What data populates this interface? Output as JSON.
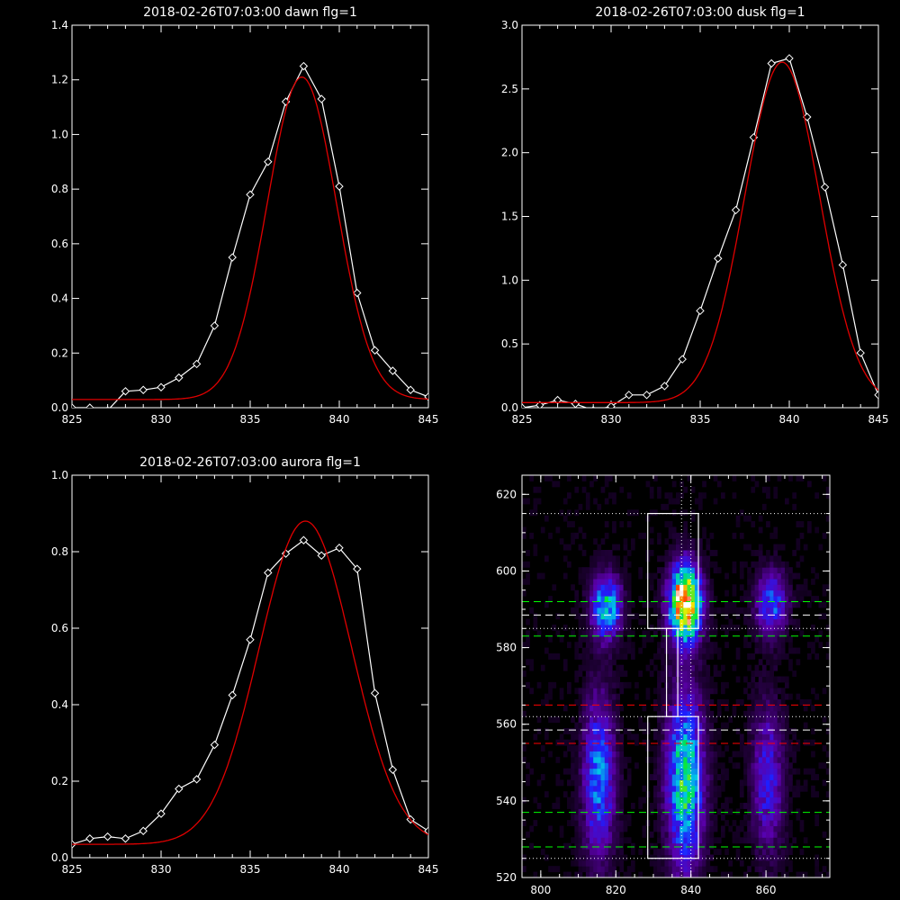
{
  "chart_data": [
    {
      "type": "line",
      "title": "2018-02-26T07:03:00 dawn flg=1",
      "xlim": [
        825,
        845
      ],
      "ylim": [
        0,
        1.4
      ],
      "x_ticks": [
        "825",
        "830",
        "835",
        "840",
        "845"
      ],
      "y_ticks": [
        "0.0",
        "0.2",
        "0.4",
        "0.6",
        "0.8",
        "1.0",
        "1.2",
        "1.4"
      ],
      "colors": {
        "observed": "#ffffff",
        "fit": "#e00000"
      },
      "series": [
        {
          "role": "observed",
          "markers": "diamond",
          "x": [
            825,
            826,
            827,
            828,
            829,
            830,
            831,
            832,
            833,
            834,
            835,
            836,
            837,
            838,
            839,
            840,
            841,
            842,
            843,
            844,
            845
          ],
          "y": [
            0.0,
            0.0,
            -0.01,
            0.06,
            0.065,
            0.075,
            0.11,
            0.16,
            0.3,
            0.55,
            0.78,
            0.9,
            1.12,
            1.25,
            1.13,
            0.81,
            0.42,
            0.21,
            0.135,
            0.065,
            0.04
          ]
        },
        {
          "role": "fit",
          "shape": "gaussian",
          "baseline": 0.03,
          "amplitude": 1.18,
          "center": 837.9,
          "sigma": 1.95
        }
      ]
    },
    {
      "type": "line",
      "title": "2018-02-26T07:03:00 dusk flg=1",
      "xlim": [
        825,
        845
      ],
      "ylim": [
        0,
        3.0
      ],
      "x_ticks": [
        "825",
        "830",
        "835",
        "840",
        "845"
      ],
      "y_ticks": [
        "0.0",
        "0.5",
        "1.0",
        "1.5",
        "2.0",
        "2.5",
        "3.0"
      ],
      "colors": {
        "observed": "#ffffff",
        "fit": "#e00000"
      },
      "series": [
        {
          "role": "observed",
          "markers": "diamond",
          "x": [
            825,
            826,
            827,
            828,
            829,
            830,
            831,
            832,
            833,
            834,
            835,
            836,
            837,
            838,
            839,
            840,
            841,
            842,
            843,
            844,
            845
          ],
          "y": [
            0.0,
            0.02,
            0.06,
            0.03,
            -0.02,
            0.01,
            0.1,
            0.1,
            0.17,
            0.38,
            0.76,
            1.17,
            1.55,
            2.12,
            2.7,
            2.74,
            2.28,
            1.73,
            1.12,
            0.43,
            0.1
          ]
        },
        {
          "role": "fit",
          "shape": "gaussian",
          "baseline": 0.04,
          "amplitude": 2.67,
          "center": 839.6,
          "sigma": 2.1
        }
      ]
    },
    {
      "type": "line",
      "title": "2018-02-26T07:03:00 aurora flg=1",
      "xlim": [
        825,
        845
      ],
      "ylim": [
        0,
        1.0
      ],
      "x_ticks": [
        "825",
        "830",
        "835",
        "840",
        "845"
      ],
      "y_ticks": [
        "0.0",
        "0.2",
        "0.4",
        "0.6",
        "0.8",
        "1.0"
      ],
      "colors": {
        "observed": "#ffffff",
        "fit": "#e00000"
      },
      "series": [
        {
          "role": "observed",
          "markers": "diamond",
          "x": [
            825,
            826,
            827,
            828,
            829,
            830,
            831,
            832,
            833,
            834,
            835,
            836,
            837,
            838,
            839,
            840,
            841,
            842,
            843,
            844,
            845
          ],
          "y": [
            0.035,
            0.05,
            0.055,
            0.05,
            0.07,
            0.115,
            0.18,
            0.205,
            0.295,
            0.425,
            0.57,
            0.745,
            0.795,
            0.83,
            0.79,
            0.81,
            0.755,
            0.43,
            0.23,
            0.1,
            0.07
          ]
        },
        {
          "role": "fit",
          "shape": "gaussian",
          "baseline": 0.035,
          "amplitude": 0.845,
          "center": 838.1,
          "sigma": 2.6
        }
      ]
    },
    {
      "type": "heatmap",
      "xlim": [
        795,
        877
      ],
      "ylim": [
        520,
        625
      ],
      "x_ticks": [
        800,
        820,
        840,
        860
      ],
      "y_ticks": [
        520,
        540,
        560,
        580,
        600,
        620
      ],
      "blobs": [
        {
          "x": 838,
          "y": 591,
          "intensity": 1.0,
          "sx": 3.0,
          "sy": 7
        },
        {
          "x": 838,
          "y": 545,
          "intensity": 0.62,
          "sx": 3.5,
          "sy": 16
        },
        {
          "x": 817,
          "y": 590,
          "intensity": 0.55,
          "sx": 2.8,
          "sy": 6
        },
        {
          "x": 815,
          "y": 545,
          "intensity": 0.45,
          "sx": 3.0,
          "sy": 15
        },
        {
          "x": 861,
          "y": 591,
          "intensity": 0.4,
          "sx": 3.0,
          "sy": 6
        },
        {
          "x": 860,
          "y": 545,
          "intensity": 0.32,
          "sx": 3.0,
          "sy": 14
        }
      ],
      "boxes": [
        {
          "x": [
            828.5,
            842
          ],
          "y": [
            585,
            615
          ]
        },
        {
          "x": [
            833.5,
            836.5
          ],
          "y": [
            562,
            585
          ]
        },
        {
          "x": [
            828.5,
            842
          ],
          "y": [
            525,
            562
          ]
        }
      ],
      "vlines": [
        {
          "x": 837.5,
          "style": "dotted"
        },
        {
          "x": 840,
          "style": "dotted"
        }
      ],
      "hlines": [
        {
          "y": 615,
          "color": "#ffffff",
          "style": "dotted"
        },
        {
          "y": 592,
          "color": "#00ff00",
          "style": "dashed"
        },
        {
          "y": 588.5,
          "color": "#ffffff",
          "style": "dashed"
        },
        {
          "y": 585,
          "color": "#ffffff",
          "style": "dotted"
        },
        {
          "y": 583,
          "color": "#00ff00",
          "style": "dashed"
        },
        {
          "y": 565,
          "color": "#ff0000",
          "style": "dashed"
        },
        {
          "y": 562,
          "color": "#ffffff",
          "style": "dotted"
        },
        {
          "y": 558.5,
          "color": "#ffffff",
          "style": "dashed"
        },
        {
          "y": 555,
          "color": "#ff0000",
          "style": "dashed"
        },
        {
          "y": 537,
          "color": "#00ff00",
          "style": "dashed"
        },
        {
          "y": 528,
          "color": "#00ff00",
          "style": "dashed"
        },
        {
          "y": 525,
          "color": "#ffffff",
          "style": "dotted"
        }
      ]
    }
  ]
}
